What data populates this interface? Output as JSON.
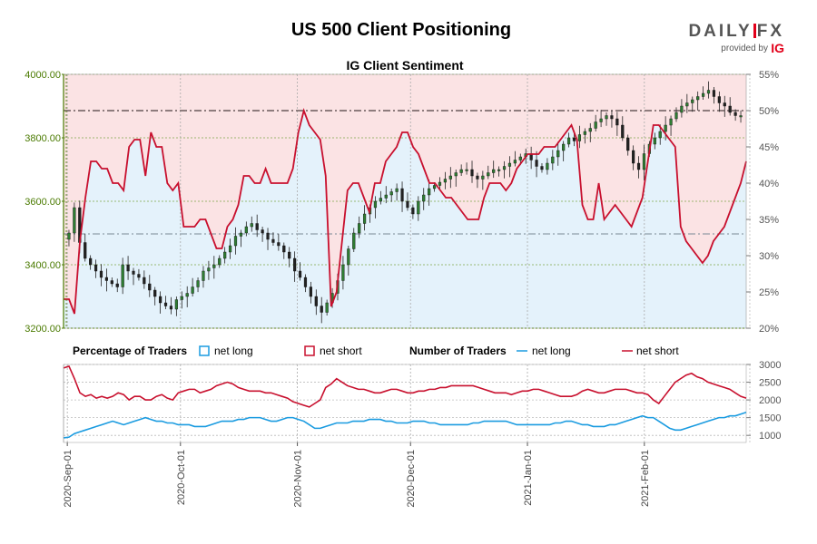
{
  "title": "US 500 Client Positioning",
  "subtitle": "IG Client Sentiment",
  "logo": {
    "word_left": "DAILY",
    "word_right": "FX",
    "provided_by": "provided by",
    "ig": "IG"
  },
  "legend": {
    "pct_title": "Percentage of Traders",
    "pct_long": "net long",
    "pct_short": "net short",
    "num_title": "Number of Traders",
    "num_long": "net long",
    "num_short": "net short"
  },
  "colors": {
    "long": "#1a9be0",
    "short": "#c8102e",
    "long_fill": "#e4f2fb",
    "short_fill": "#fbe3e4",
    "price_axis": "#4a7a00",
    "up": "#2e7d32",
    "down": "#222222"
  },
  "chart_data": [
    {
      "type": "candlestick",
      "name": "price",
      "ylim": [
        3200,
        4000
      ],
      "yticks": [
        "3200.00",
        "3400.00",
        "3600.00",
        "3800.00",
        "4000.00"
      ],
      "xlim": [
        "2020-08-31",
        "2021-02-28"
      ],
      "xticks": [
        "2020-Sep-01",
        "2020-Oct-01",
        "2020-Nov-01",
        "2020-Dec-01",
        "2021-Jan-01",
        "2021-Feb-01"
      ],
      "xtick_dates": [
        "2020-09-01",
        "2020-10-01",
        "2020-11-01",
        "2020-12-01",
        "2021-01-01",
        "2021-02-01"
      ],
      "close": [
        3500,
        3580,
        3470,
        3420,
        3400,
        3380,
        3360,
        3350,
        3340,
        3330,
        3400,
        3380,
        3370,
        3360,
        3340,
        3320,
        3300,
        3280,
        3270,
        3260,
        3290,
        3300,
        3310,
        3330,
        3350,
        3380,
        3390,
        3400,
        3420,
        3440,
        3460,
        3490,
        3500,
        3520,
        3530,
        3510,
        3500,
        3480,
        3470,
        3460,
        3440,
        3420,
        3380,
        3360,
        3330,
        3300,
        3270,
        3250,
        3280,
        3310,
        3350,
        3400,
        3450,
        3500,
        3530,
        3560,
        3580,
        3600,
        3610,
        3620,
        3630,
        3640,
        3600,
        3580,
        3560,
        3600,
        3620,
        3640,
        3650,
        3660,
        3670,
        3680,
        3690,
        3700,
        3700,
        3680,
        3670,
        3680,
        3690,
        3700,
        3700,
        3710,
        3720,
        3730,
        3740,
        3750,
        3730,
        3710,
        3700,
        3720,
        3740,
        3760,
        3780,
        3800,
        3790,
        3810,
        3820,
        3830,
        3850,
        3860,
        3870,
        3860,
        3840,
        3800,
        3760,
        3720,
        3700,
        3750,
        3780,
        3800,
        3820,
        3840,
        3860,
        3880,
        3900,
        3910,
        3920,
        3930,
        3940,
        3950,
        3930,
        3910,
        3900,
        3880,
        3870,
        3870
      ]
    },
    {
      "type": "line",
      "name": "percentage",
      "ylim": [
        20,
        55
      ],
      "yticks": [
        "20%",
        "25%",
        "30%",
        "35%",
        "40%",
        "45%",
        "50%",
        "55%"
      ],
      "reference_lines": [
        50,
        33
      ],
      "series": [
        {
          "name": "net short",
          "values": [
            24,
            24,
            22,
            32,
            38,
            43,
            43,
            42,
            42,
            40,
            40,
            39,
            45,
            46,
            46,
            41,
            47,
            45,
            45,
            40,
            39,
            40,
            34,
            34,
            34,
            35,
            35,
            33,
            31,
            31,
            34,
            35,
            37,
            41,
            41,
            40,
            40,
            42,
            40,
            40,
            40,
            40,
            42,
            47,
            50,
            48,
            47,
            46,
            41,
            23,
            25,
            32,
            39,
            40,
            40,
            38,
            36,
            40,
            40,
            43,
            44,
            45,
            47,
            47,
            45,
            44,
            42,
            40,
            40,
            39,
            38,
            38,
            37,
            36,
            35,
            35,
            35,
            38,
            40,
            40,
            40,
            39,
            40,
            42,
            43,
            44,
            44,
            44,
            45,
            45,
            45,
            46,
            47,
            48,
            46,
            37,
            35,
            35,
            40,
            35,
            36,
            37,
            36,
            35,
            34,
            36,
            38,
            43,
            48,
            48,
            47,
            46,
            45,
            34,
            32,
            31,
            30,
            29,
            30,
            32,
            33,
            34,
            36,
            38,
            40,
            43
          ]
        }
      ]
    },
    {
      "type": "line",
      "name": "number of traders",
      "ylim": [
        800,
        3000
      ],
      "yticks": [
        "1000",
        "1500",
        "2000",
        "2500",
        "3000"
      ],
      "series": [
        {
          "name": "net short",
          "values": [
            2900,
            2950,
            2600,
            2200,
            2100,
            2150,
            2050,
            2100,
            2050,
            2100,
            2200,
            2150,
            2000,
            2100,
            2100,
            2000,
            2000,
            2100,
            2150,
            2050,
            2000,
            2200,
            2250,
            2300,
            2300,
            2200,
            2250,
            2300,
            2400,
            2450,
            2500,
            2450,
            2350,
            2300,
            2250,
            2250,
            2250,
            2200,
            2200,
            2150,
            2100,
            2050,
            1950,
            1900,
            1850,
            1800,
            1900,
            2000,
            2350,
            2450,
            2600,
            2500,
            2400,
            2350,
            2300,
            2300,
            2250,
            2200,
            2200,
            2250,
            2300,
            2300,
            2250,
            2200,
            2200,
            2250,
            2250,
            2300,
            2300,
            2350,
            2350,
            2400,
            2400,
            2400,
            2400,
            2400,
            2350,
            2300,
            2250,
            2200,
            2200,
            2200,
            2150,
            2200,
            2250,
            2250,
            2300,
            2300,
            2250,
            2200,
            2150,
            2100,
            2100,
            2100,
            2150,
            2250,
            2300,
            2250,
            2200,
            2200,
            2250,
            2300,
            2300,
            2300,
            2250,
            2200,
            2200,
            2150,
            2000,
            1900,
            2100,
            2300,
            2500,
            2600,
            2700,
            2750,
            2650,
            2600,
            2500,
            2450,
            2400,
            2350,
            2300,
            2200,
            2100,
            2050
          ]
        },
        {
          "name": "net long",
          "values": [
            930,
            950,
            1050,
            1100,
            1150,
            1200,
            1250,
            1300,
            1350,
            1400,
            1350,
            1300,
            1350,
            1400,
            1450,
            1500,
            1450,
            1400,
            1400,
            1350,
            1350,
            1300,
            1300,
            1300,
            1250,
            1250,
            1250,
            1300,
            1350,
            1400,
            1400,
            1400,
            1450,
            1450,
            1500,
            1500,
            1500,
            1450,
            1400,
            1400,
            1450,
            1500,
            1500,
            1450,
            1400,
            1300,
            1200,
            1200,
            1250,
            1300,
            1350,
            1350,
            1350,
            1400,
            1400,
            1400,
            1450,
            1450,
            1450,
            1400,
            1400,
            1350,
            1350,
            1350,
            1400,
            1400,
            1400,
            1350,
            1350,
            1300,
            1300,
            1300,
            1300,
            1300,
            1300,
            1350,
            1350,
            1400,
            1400,
            1400,
            1400,
            1400,
            1350,
            1300,
            1300,
            1300,
            1300,
            1300,
            1300,
            1300,
            1350,
            1350,
            1400,
            1400,
            1350,
            1300,
            1300,
            1250,
            1250,
            1250,
            1300,
            1300,
            1350,
            1400,
            1450,
            1500,
            1550,
            1500,
            1500,
            1400,
            1300,
            1200,
            1150,
            1150,
            1200,
            1250,
            1300,
            1350,
            1400,
            1450,
            1500,
            1500,
            1550,
            1550,
            1600,
            1650
          ]
        }
      ]
    }
  ]
}
